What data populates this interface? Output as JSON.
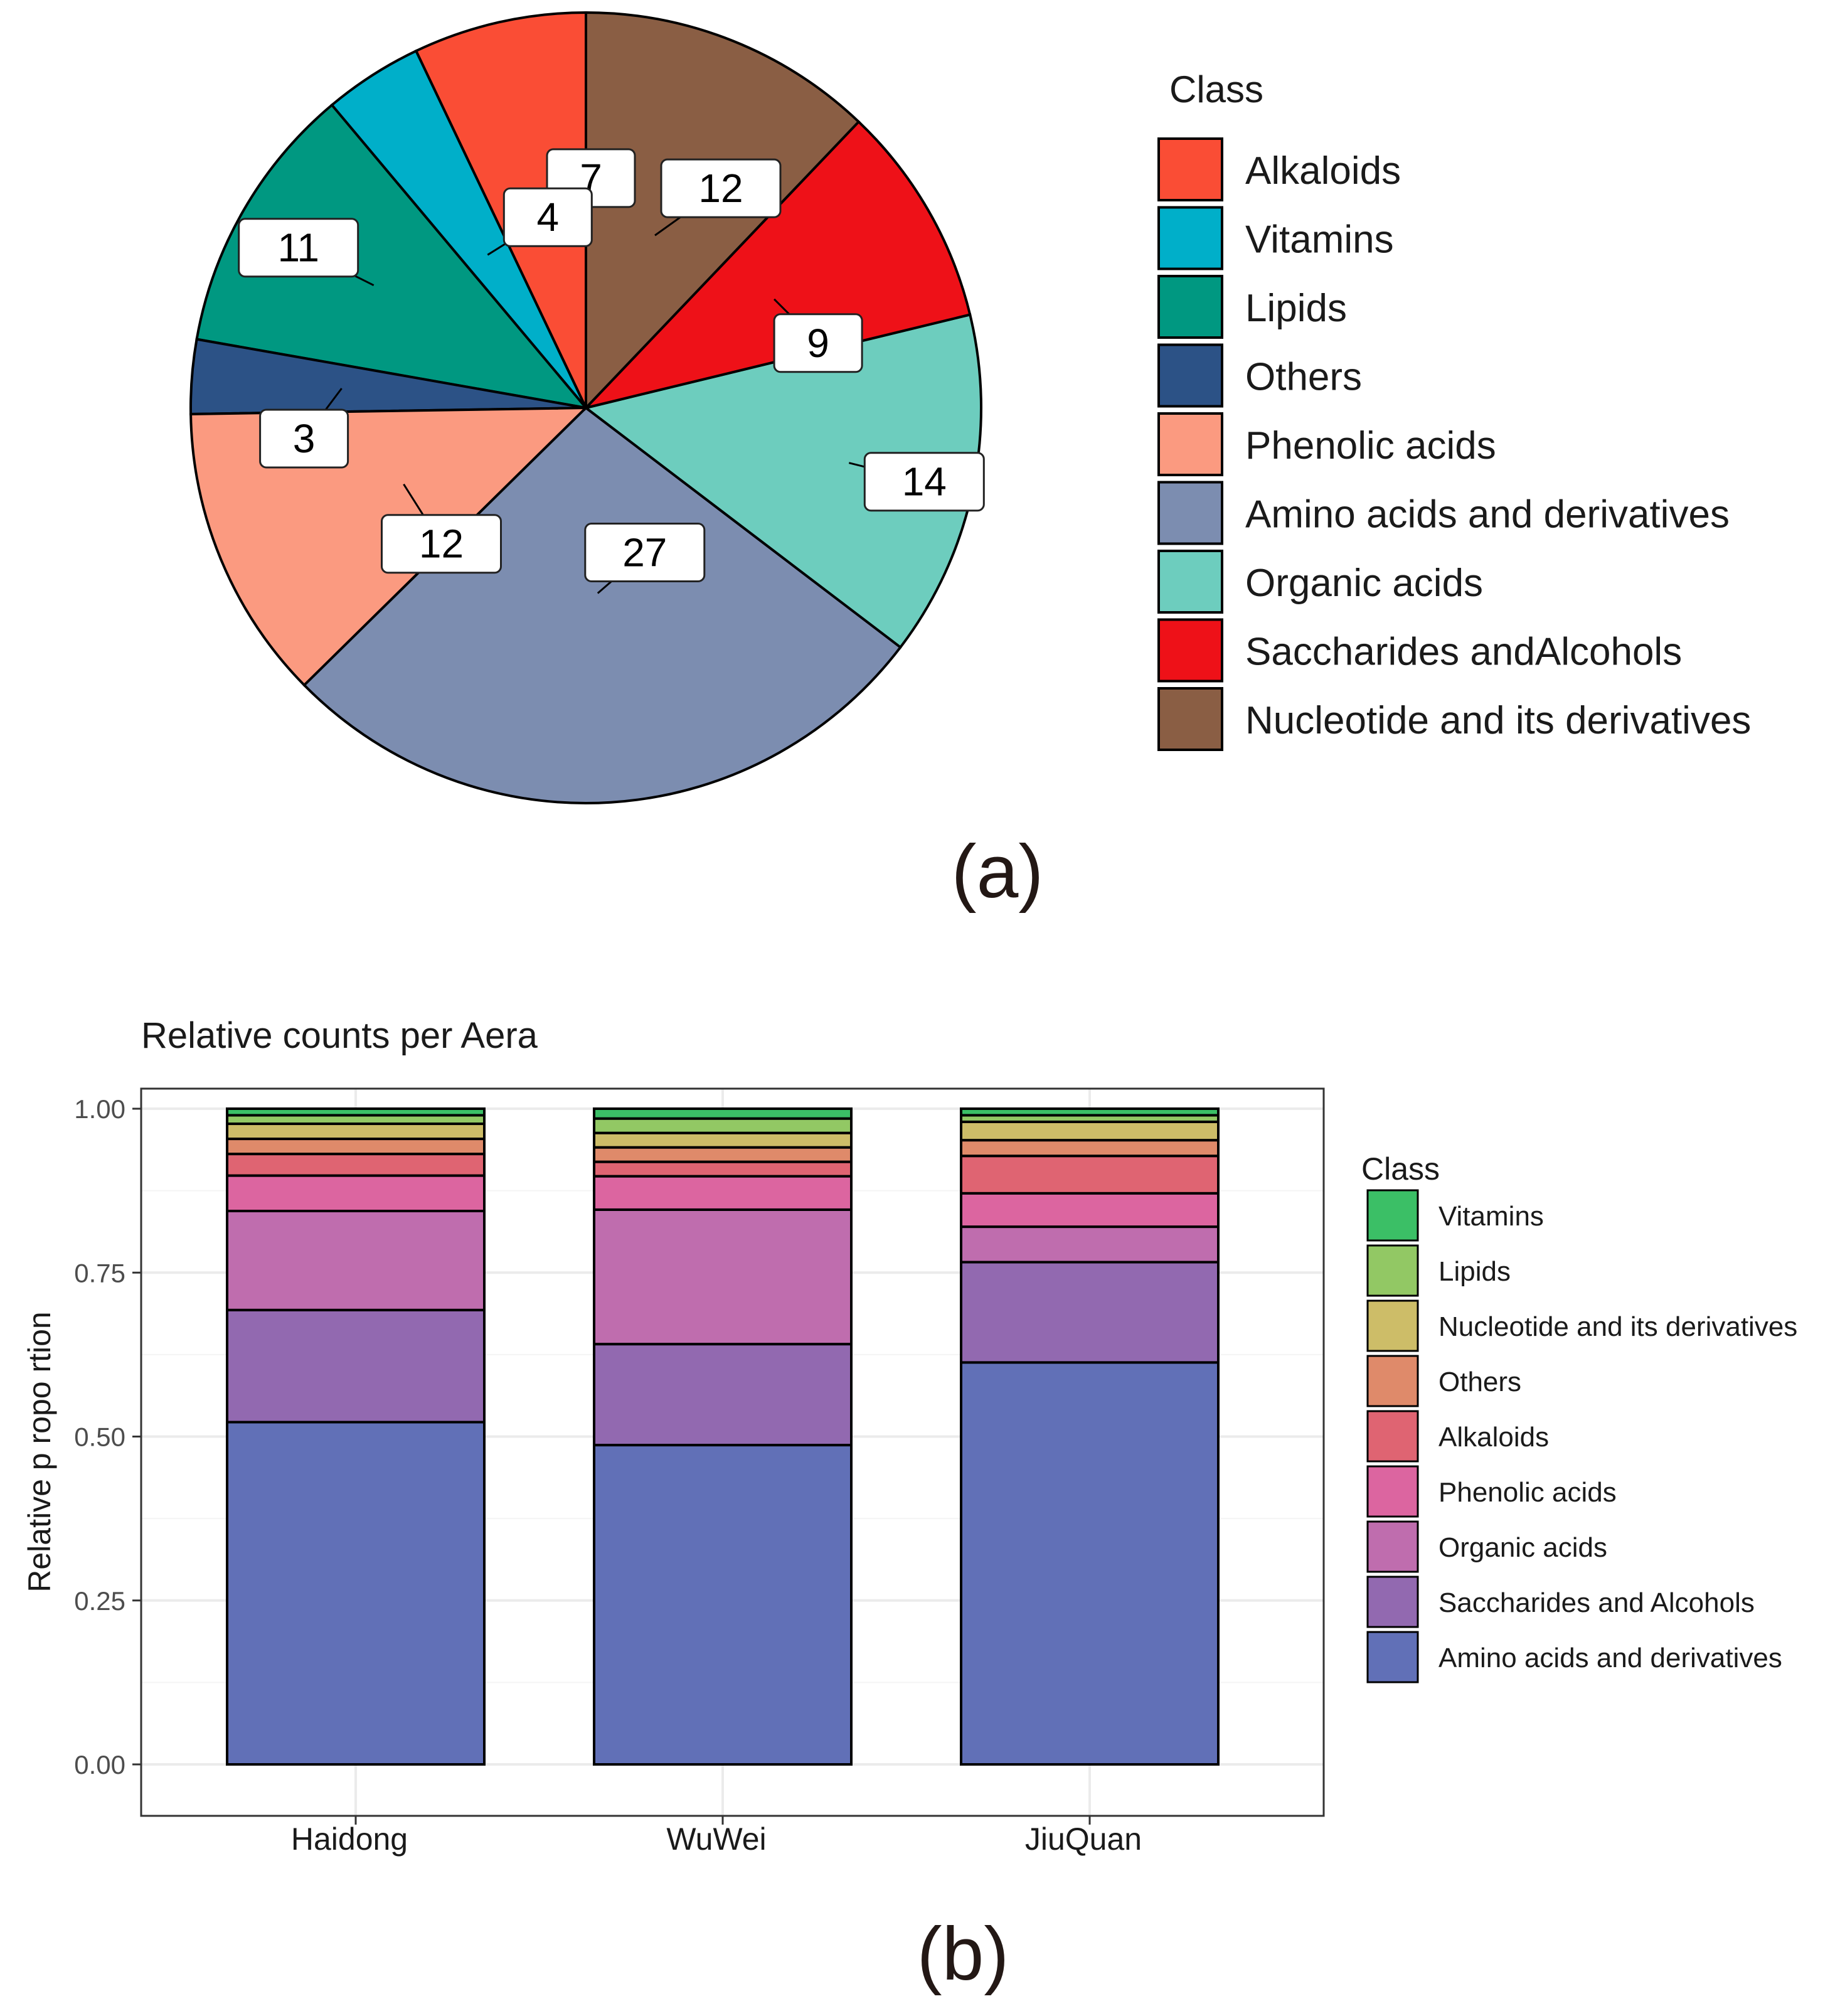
{
  "colors": {
    "Alkaloids_pie": "#fa4d35",
    "Vitamins_pie": "#00afc9",
    "Lipids_pie": "#009881",
    "Others_pie": "#2c5286",
    "Phenolic_pie": "#fb9a80",
    "Amino_pie": "#7c8db0",
    "Organic_pie": "#6dcdbe",
    "Sacch_pie": "#ee1118",
    "Nucleo_pie": "#8a5e44",
    "Vitamins_bar": "#3bbf66",
    "Lipids_bar": "#92c864",
    "Nucleo_bar": "#cdbd68",
    "Others_bar": "#df8a6a",
    "Alkaloids_bar": "#df6472",
    "Phenolic_bar": "#dc65a0",
    "Organic_bar": "#bf6dae",
    "Sacch_bar": "#9269b0",
    "Amino_bar": "#6170b7"
  },
  "chart_data": [
    {
      "type": "pie",
      "panel_label": "(a)",
      "legend_title": "Class",
      "legend_placement": "right",
      "slices": [
        {
          "label": "Alkaloids",
          "value": 7,
          "display": "7",
          "color_key": "Alkaloids_pie"
        },
        {
          "label": "Vitamins",
          "value": 4,
          "display": "4",
          "color_key": "Vitamins_pie"
        },
        {
          "label": "Lipids",
          "value": 11,
          "display": "11",
          "color_key": "Lipids_pie"
        },
        {
          "label": "Others",
          "value": 3,
          "display": "3",
          "color_key": "Others_pie"
        },
        {
          "label": "Phenolic acids",
          "value": 12,
          "display": "12",
          "color_key": "Phenolic_pie"
        },
        {
          "label": "Amino acids and derivatives",
          "value": 27,
          "display": "27",
          "color_key": "Amino_pie"
        },
        {
          "label": "Organic acids",
          "value": 14,
          "display": "14",
          "color_key": "Organic_pie"
        },
        {
          "label": "Saccharides andAlcohols",
          "value": 9,
          "display": "9",
          "color_key": "Sacch_pie"
        },
        {
          "label": "Nucleotide and its derivatives",
          "value": 12,
          "display": "12",
          "color_key": "Nucleo_pie"
        }
      ]
    },
    {
      "type": "bar",
      "stacked": true,
      "panel_label": "(b)",
      "title": "Relative counts per Aera",
      "xlabel": "",
      "ylabel": "Relative p ropo rtion",
      "ylim": [
        0,
        1
      ],
      "yticks": [
        "0.00",
        "0.25",
        "0.50",
        "0.75",
        "1.00"
      ],
      "grid": true,
      "legend_title": "Class",
      "legend_placement": "right",
      "categories": [
        "Haidong",
        "WuWei",
        "JiuQuan"
      ],
      "series": [
        {
          "name": "Amino acids and derivatives",
          "legend_label": "Amino acids and derivatives",
          "color_key": "Amino_bar",
          "values": [
            0.522,
            0.487,
            0.613
          ]
        },
        {
          "name": "Saccharides and Alcohols",
          "legend_label": "Saccharides and Alcohols",
          "color_key": "Sacch_bar",
          "values": [
            0.171,
            0.154,
            0.153
          ]
        },
        {
          "name": "Organic acids",
          "legend_label": "Organic acids",
          "color_key": "Organic_bar",
          "values": [
            0.151,
            0.205,
            0.054
          ]
        },
        {
          "name": "Phenolic acids",
          "legend_label": "Phenolic acids",
          "color_key": "Phenolic_bar",
          "values": [
            0.054,
            0.051,
            0.051
          ]
        },
        {
          "name": "Alkaloids",
          "legend_label": "Alkaloids",
          "color_key": "Alkaloids_bar",
          "values": [
            0.033,
            0.022,
            0.057
          ]
        },
        {
          "name": "Others",
          "legend_label": "Others",
          "color_key": "Others_bar",
          "values": [
            0.023,
            0.022,
            0.024
          ]
        },
        {
          "name": "Nucleotide and its derivatives",
          "legend_label": "Nucleotide and its derivatives",
          "color_key": "Nucleo_bar",
          "values": [
            0.023,
            0.022,
            0.028
          ]
        },
        {
          "name": "Lipids",
          "legend_label": "Lipids",
          "color_key": "Lipids_bar",
          "values": [
            0.013,
            0.022,
            0.01
          ]
        },
        {
          "name": "Vitamins",
          "legend_label": "Vitamins",
          "color_key": "Vitamins_bar",
          "values": [
            0.01,
            0.015,
            0.01
          ]
        }
      ]
    }
  ]
}
